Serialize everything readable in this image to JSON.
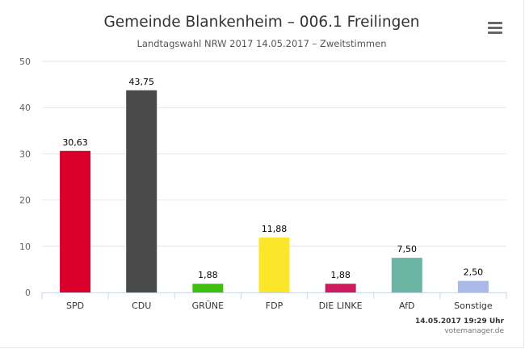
{
  "header": {
    "title": "Gemeinde Blankenheim – 006.1 Freilingen",
    "subtitle": "Landtagswahl NRW 2017 14.05.2017 – Zweitstimmen",
    "menu_icon": "hamburger-menu-icon"
  },
  "chart_data": {
    "type": "bar",
    "title": "Gemeinde Blankenheim – 006.1 Freilingen",
    "subtitle": "Landtagswahl NRW 2017 14.05.2017 – Zweitstimmen",
    "categories": [
      "SPD",
      "CDU",
      "GRÜNE",
      "FDP",
      "DIE LINKE",
      "AfD",
      "Sonstige"
    ],
    "values": [
      30.63,
      43.75,
      1.88,
      11.88,
      1.88,
      7.5,
      2.5
    ],
    "labels": [
      "30,63",
      "43,75",
      "1,88",
      "11,88",
      "1,88",
      "7,50",
      "2,50"
    ],
    "colors": [
      "#d9002b",
      "#4a4a4a",
      "#3dbf0e",
      "#fbe62a",
      "#cc1a5c",
      "#6cb5a5",
      "#aab9e6"
    ],
    "yticks": [
      "0",
      "10",
      "20",
      "30",
      "40",
      "50"
    ],
    "ylim": [
      0,
      50
    ],
    "xlabel": "",
    "ylabel": "",
    "grid": true,
    "legend": "none"
  },
  "credits": {
    "timestamp": "14.05.2017 19:29 Uhr",
    "source": "votemanager.de"
  }
}
